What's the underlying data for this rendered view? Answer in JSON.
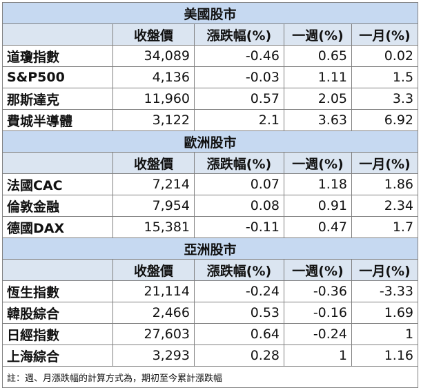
{
  "headers": [
    "收盤價",
    "漲跌幅(%)",
    "一週(%)",
    "一月(%)"
  ],
  "sections": [
    {
      "title": "美國股市",
      "rows": [
        {
          "name": "道瓊指數",
          "close": "34,089",
          "change": "-0.46",
          "week": "0.65",
          "month": "0.02"
        },
        {
          "name": "S&P500",
          "close": "4,136",
          "change": "-0.03",
          "week": "1.11",
          "month": "1.5"
        },
        {
          "name": "那斯達克",
          "close": "11,960",
          "change": "0.57",
          "week": "2.05",
          "month": "3.3"
        },
        {
          "name": "費城半導體",
          "close": "3,122",
          "change": "2.1",
          "week": "3.63",
          "month": "6.92"
        }
      ]
    },
    {
      "title": "歐洲股市",
      "rows": [
        {
          "name": "法國CAC",
          "close": "7,214",
          "change": "0.07",
          "week": "1.18",
          "month": "1.86"
        },
        {
          "name": "倫敦金融",
          "close": "7,954",
          "change": "0.08",
          "week": "0.91",
          "month": "2.34"
        },
        {
          "name": "德國DAX",
          "close": "15,381",
          "change": "-0.11",
          "week": "0.47",
          "month": "1.7"
        }
      ]
    },
    {
      "title": "亞洲股市",
      "rows": [
        {
          "name": "恆生指數",
          "close": "21,114",
          "change": "-0.24",
          "week": "-0.36",
          "month": "-3.33"
        },
        {
          "name": "韓股綜合",
          "close": "2,466",
          "change": "0.53",
          "week": "-0.16",
          "month": "1.69"
        },
        {
          "name": "日經指數",
          "close": "27,603",
          "change": "0.64",
          "week": "-0.24",
          "month": "1"
        },
        {
          "name": "上海綜合",
          "close": "3,293",
          "change": "0.28",
          "week": "1",
          "month": "1.16"
        }
      ]
    }
  ],
  "note": "註：週、月漲跌幅的計算方式為，期初至今累計漲跌幅"
}
